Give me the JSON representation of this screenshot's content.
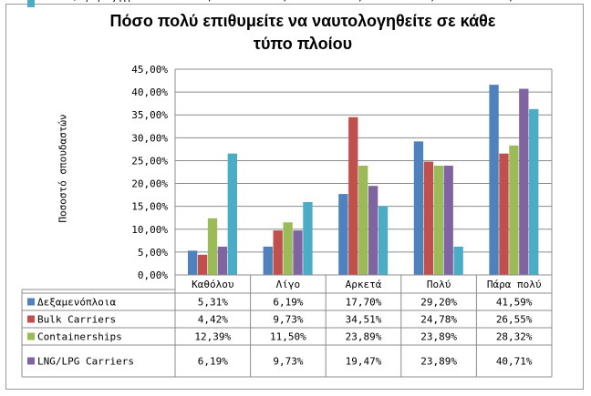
{
  "chart_data": {
    "type": "bar",
    "title": "Πόσο πολύ επιθυμείτε να ναυτολογηθείτε σε κάθε τύπο πλοίου",
    "title_lines": [
      "Πόσο πολύ επιθυμείτε να ναυτολογηθείτε σε κάθε",
      "τύπο πλοίου"
    ],
    "ylabel": "Ποσοστό σπουδαστών",
    "xlabel": "",
    "ylim": [
      0,
      45
    ],
    "y_ticks": [
      "0,00%",
      "5,00%",
      "10,00%",
      "15,00%",
      "20,00%",
      "25,00%",
      "30,00%",
      "35,00%",
      "40,00%",
      "45,00%"
    ],
    "grid": true,
    "legend": "data-table",
    "categories": [
      "Καθόλου",
      "Λίγο",
      "Αρκετά",
      "Πολύ",
      "Πάρα πολύ"
    ],
    "series": [
      {
        "name": "Δεξαμενόπλοια",
        "name_lines": [
          "Δεξαμενόπλοια"
        ],
        "color": "#4f81bd",
        "values": [
          5.31,
          6.19,
          17.7,
          29.2,
          41.59
        ],
        "labels": [
          "5,31%",
          "6,19%",
          "17,70%",
          "29,20%",
          "41,59%"
        ]
      },
      {
        "name": "Bulk Carriers",
        "name_lines": [
          "Bulk Carriers"
        ],
        "color": "#c0504d",
        "values": [
          4.42,
          9.73,
          34.51,
          24.78,
          26.55
        ],
        "labels": [
          "4,42%",
          "9,73%",
          "34,51%",
          "24,78%",
          "26,55%"
        ]
      },
      {
        "name": "Containerships",
        "name_lines": [
          "Containerships"
        ],
        "color": "#9bbb59",
        "values": [
          12.39,
          11.5,
          23.89,
          23.89,
          28.32
        ],
        "labels": [
          "12,39%",
          "11,50%",
          "23,89%",
          "23,89%",
          "28,32%"
        ]
      },
      {
        "name": "LNG/LPG Carriers",
        "name_lines": [
          "LNG/LPG Carriers"
        ],
        "color": "#8064a2",
        "values": [
          6.19,
          9.73,
          19.47,
          23.89,
          40.71
        ],
        "labels": [
          "6,19%",
          "9,73%",
          "19,47%",
          "23,89%",
          "40,71%"
        ]
      },
      {
        "name": "Επιβατηγά πλοία/Κρουαζιερόπλοια",
        "name_lines": [
          "Επιβατηγά",
          "πλοία/Κρουαζιερόπλοια"
        ],
        "color": "#4bacc6",
        "values": [
          26.55,
          15.93,
          15.04,
          6.19,
          36.28
        ],
        "labels": [
          "26,55%",
          "15,93%",
          "15,04%",
          "6,19%",
          "36,28%"
        ]
      }
    ]
  }
}
